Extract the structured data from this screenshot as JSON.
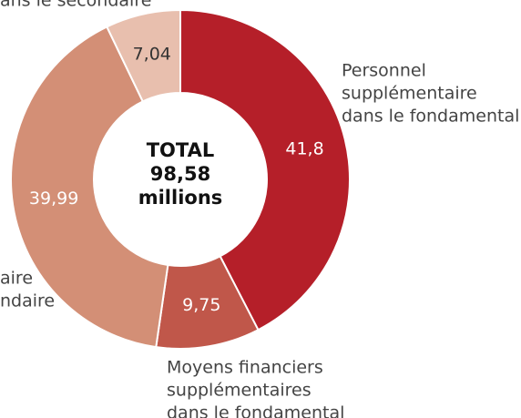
{
  "chart_data": {
    "type": "pie",
    "center_text": [
      "TOTAL",
      "98,58",
      "millions"
    ],
    "categories": [
      [
        "Personnel",
        "supplémentaire",
        "dans le fondamental"
      ],
      [
        "Moyens financiers",
        "supplémentaires",
        "dans le fondamental"
      ],
      [
        "aire",
        "ndaire"
      ],
      [
        "ans le secondaire"
      ]
    ],
    "values": [
      41.8,
      9.75,
      39.99,
      7.04
    ],
    "value_labels": [
      "41,8",
      "9,75",
      "39,99",
      "7,04"
    ],
    "colors": [
      "#b51f29",
      "#c0574a",
      "#d38f76",
      "#e8bfae"
    ]
  }
}
